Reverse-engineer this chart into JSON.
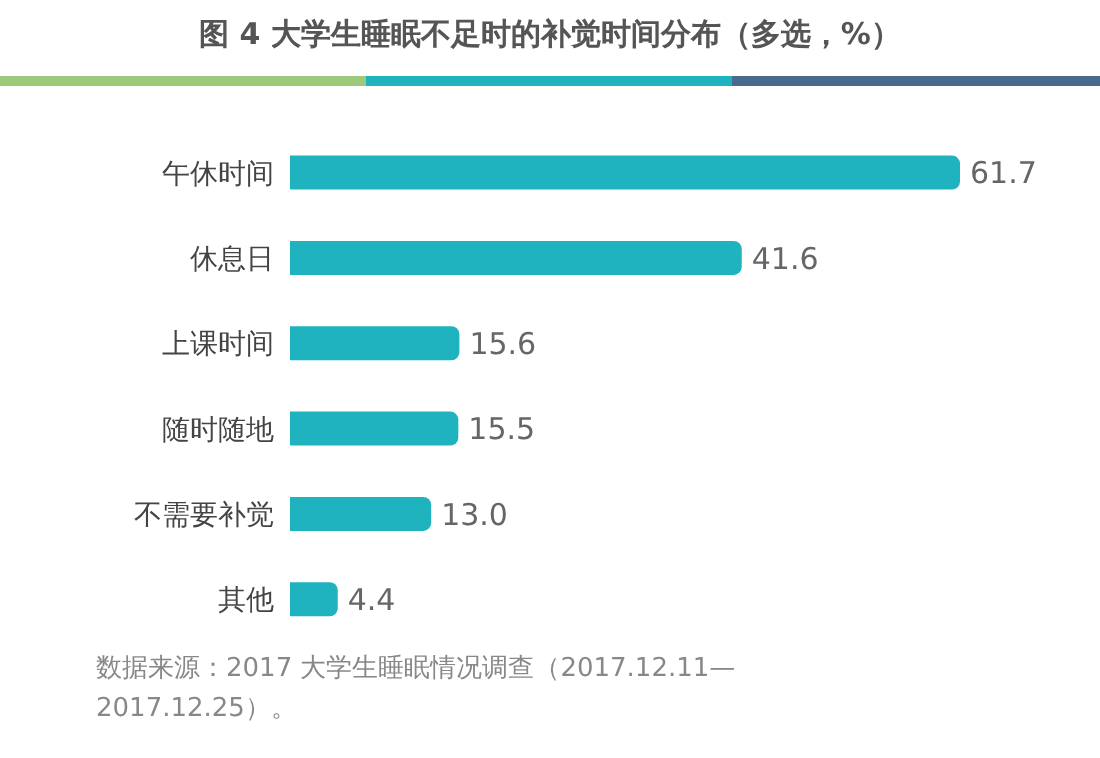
{
  "chart_data": {
    "type": "bar",
    "orientation": "horizontal",
    "title": "图 4  大学生睡眠不足时的补觉时间分布（多选，%）",
    "categories": [
      "午休时间",
      "休息日",
      "上课时间",
      "随时随地",
      "不需要补觉",
      "其他"
    ],
    "values": [
      61.7,
      41.6,
      15.6,
      15.5,
      13.0,
      4.4
    ],
    "value_labels": [
      "61.7",
      "41.6",
      "15.6",
      "15.5",
      "13.0",
      "4.4"
    ],
    "color": "#1fb3bf",
    "grid": false,
    "annotations": [
      "数据来源：2017 大学生睡眠情况调查（2017.12.11—2017.12.25）。"
    ]
  }
}
